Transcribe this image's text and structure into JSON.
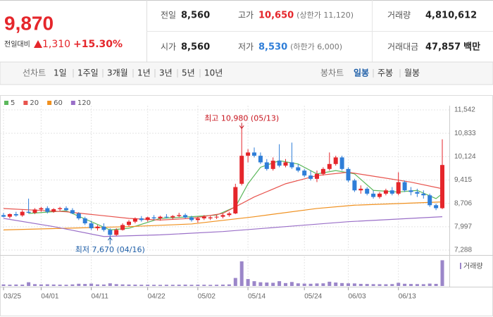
{
  "header": {
    "price": "9,870",
    "change_label": "전일대비",
    "change": "1,310",
    "change_pct": "+15.30%",
    "stats": [
      {
        "label": "전일",
        "value": "8,560"
      },
      {
        "label": "고가",
        "value": "10,650",
        "note": "(상한가 11,120)"
      },
      {
        "label": "거래량",
        "value": "4,810,612"
      },
      {
        "label": "시가",
        "value": "8,560"
      },
      {
        "label": "저가",
        "value": "8,530",
        "note": "(하한가 6,000)"
      },
      {
        "label": "거래대금",
        "value": "47,857",
        "unit": "백만"
      }
    ]
  },
  "toolbar": {
    "line_chart": "선차트",
    "line_periods": [
      "1일",
      "1주일",
      "3개월",
      "1년",
      "3년",
      "5년",
      "10년"
    ],
    "candle_chart": "봉차트",
    "candle_periods": [
      "일봉",
      "주봉",
      "월봉"
    ]
  },
  "chart_data": {
    "type": "candlestick",
    "up_color": "#e5262b",
    "down_color": "#2f7ed8",
    "grid": true,
    "categories": [
      "03/25",
      null,
      null,
      null,
      null,
      null,
      "04/01",
      null,
      null,
      null,
      null,
      null,
      null,
      null,
      "04/11",
      null,
      null,
      null,
      null,
      null,
      null,
      null,
      null,
      "04/22",
      null,
      null,
      null,
      null,
      null,
      null,
      null,
      "05/02",
      null,
      null,
      null,
      null,
      null,
      null,
      null,
      "05/14",
      null,
      null,
      null,
      null,
      null,
      null,
      null,
      null,
      "05/24",
      null,
      null,
      null,
      null,
      null,
      null,
      "06/03",
      null,
      null,
      null,
      null,
      null,
      null,
      null,
      "06/13",
      null,
      null,
      null,
      null,
      null,
      null,
      null
    ],
    "open": [
      8350,
      8300,
      8380,
      8340,
      8450,
      8420,
      8520,
      8560,
      8450,
      8530,
      8560,
      8500,
      8400,
      8250,
      8100,
      7950,
      8000,
      7900,
      7750,
      7900,
      8050,
      8150,
      8250,
      8200,
      8280,
      8250,
      8300,
      8280,
      8320,
      8350,
      8280,
      8200,
      8250,
      8250,
      8280,
      8300,
      8350,
      8400,
      9300,
      10150,
      10250,
      10150,
      9950,
      9750,
      10000,
      9850,
      9950,
      9800,
      9700,
      9550,
      9450,
      9600,
      9750,
      9900,
      10100,
      9750,
      9400,
      9100,
      9150,
      9000,
      8900,
      9000,
      9100,
      9000,
      9350,
      9100,
      9050,
      9000,
      8950,
      8650,
      8560
    ],
    "high": [
      8420,
      8400,
      8450,
      8500,
      8850,
      8560,
      8600,
      8620,
      8560,
      8600,
      8620,
      8560,
      8440,
      8300,
      8180,
      8050,
      8100,
      7950,
      7950,
      8100,
      8200,
      8280,
      8320,
      8300,
      8350,
      8330,
      8380,
      8350,
      8420,
      8400,
      8330,
      8300,
      8350,
      8320,
      8350,
      8400,
      8450,
      9300,
      10980,
      10350,
      10400,
      10250,
      10050,
      10100,
      10500,
      10050,
      10550,
      9900,
      9750,
      9700,
      9700,
      9800,
      10250,
      10150,
      10150,
      9800,
      9450,
      9250,
      9200,
      9100,
      9050,
      9150,
      9200,
      9650,
      9400,
      9200,
      9150,
      9100,
      9000,
      8700,
      10650
    ],
    "low": [
      8280,
      8250,
      8300,
      8300,
      8400,
      8380,
      8450,
      8400,
      8420,
      8480,
      8480,
      8380,
      8200,
      8050,
      7900,
      7880,
      7850,
      7670,
      7720,
      7880,
      8000,
      8100,
      8150,
      8150,
      8200,
      8180,
      8250,
      8220,
      8280,
      8250,
      8150,
      8120,
      8200,
      8200,
      8230,
      8250,
      8300,
      8380,
      9250,
      9950,
      10100,
      9900,
      9700,
      9700,
      9800,
      9800,
      9750,
      9650,
      9500,
      9400,
      9350,
      9550,
      9700,
      9850,
      9700,
      9350,
      9050,
      9000,
      8950,
      8850,
      8850,
      8950,
      8950,
      8950,
      9050,
      8950,
      8900,
      8850,
      8600,
      8500,
      8530
    ],
    "close": [
      8300,
      8380,
      8340,
      8450,
      8420,
      8520,
      8560,
      8450,
      8530,
      8560,
      8500,
      8400,
      8250,
      8100,
      7950,
      8000,
      7900,
      7750,
      7900,
      8050,
      8150,
      8250,
      8200,
      8280,
      8250,
      8300,
      8280,
      8320,
      8350,
      8280,
      8200,
      8250,
      8300,
      8280,
      8300,
      8350,
      8400,
      9200,
      10150,
      10250,
      10150,
      9950,
      9750,
      10000,
      9850,
      9950,
      9800,
      9700,
      9550,
      9450,
      9600,
      9750,
      9900,
      10100,
      9750,
      9400,
      9100,
      9150,
      9000,
      8900,
      9000,
      9100,
      9000,
      9350,
      9100,
      9050,
      9000,
      8950,
      8650,
      8560,
      9870
    ],
    "ylim": [
      7288,
      11542
    ],
    "yticks": [
      {
        "value": 7288,
        "label": "7,288"
      },
      {
        "value": 7997,
        "label": "7,997"
      },
      {
        "value": 8706,
        "label": "8,706"
      },
      {
        "value": 9415,
        "label": "9,415"
      },
      {
        "value": 10124,
        "label": "10,124"
      },
      {
        "value": 10833,
        "label": "10,833"
      },
      {
        "value": 11542,
        "label": "11,542"
      }
    ],
    "moving_averages": [
      {
        "name": "5",
        "color": "#5cb85c",
        "x": [
          4,
          10,
          14,
          17,
          20,
          25,
          30,
          34,
          37,
          39,
          41,
          44,
          47,
          50,
          53,
          56,
          59,
          63,
          66,
          69,
          70
        ],
        "values": [
          8400,
          8480,
          8150,
          7900,
          7950,
          8250,
          8300,
          8350,
          8600,
          9300,
          9800,
          10000,
          9900,
          9600,
          9700,
          9600,
          9100,
          9050,
          9100,
          8850,
          9000
        ]
      },
      {
        "name": "20",
        "color": "#e8544e",
        "x": [
          0,
          5,
          10,
          15,
          20,
          25,
          30,
          35,
          40,
          45,
          50,
          55,
          60,
          65,
          70
        ],
        "values": [
          8550,
          8500,
          8450,
          8350,
          8250,
          8200,
          8250,
          8400,
          8900,
          9300,
          9550,
          9650,
          9500,
          9350,
          9150
        ]
      },
      {
        "name": "60",
        "color": "#f0901e",
        "x": [
          0,
          10,
          20,
          30,
          40,
          50,
          56,
          70
        ],
        "values": [
          7900,
          7950,
          8000,
          8080,
          8300,
          8550,
          8650,
          8750
        ]
      },
      {
        "name": "120",
        "color": "#9a6fc8",
        "x": [
          0,
          8,
          16,
          25,
          35,
          45,
          55,
          70
        ],
        "values": [
          8250,
          8000,
          7700,
          7750,
          7850,
          8000,
          8150,
          8300
        ]
      }
    ],
    "volume": {
      "name": "거래량",
      "color": "#9b86c9",
      "ylim": [
        0,
        5000000
      ],
      "values": [
        300000,
        250000,
        280000,
        260000,
        700000,
        350000,
        300000,
        320000,
        280000,
        260000,
        240000,
        300000,
        420000,
        380000,
        450000,
        300000,
        280000,
        500000,
        350000,
        300000,
        280000,
        260000,
        240000,
        250000,
        230000,
        220000,
        240000,
        230000,
        250000,
        260000,
        230000,
        250000,
        240000,
        220000,
        240000,
        260000,
        300000,
        1500000,
        4600000,
        1300000,
        900000,
        700000,
        650000,
        600000,
        900000,
        550000,
        750000,
        500000,
        450000,
        420000,
        480000,
        500000,
        800000,
        650000,
        550000,
        500000,
        480000,
        400000,
        380000,
        350000,
        340000,
        330000,
        360000,
        600000,
        420000,
        380000,
        360000,
        340000,
        450000,
        400000,
        4810612
      ]
    },
    "annotations": [
      {
        "text": "최고 10,980 (05/13)",
        "x": 38,
        "value": 10980,
        "color": "#c8141e"
      },
      {
        "text": "최저 7,670 (04/16)",
        "x": 17,
        "value": 7670,
        "color": "#1f5fa8"
      }
    ]
  }
}
